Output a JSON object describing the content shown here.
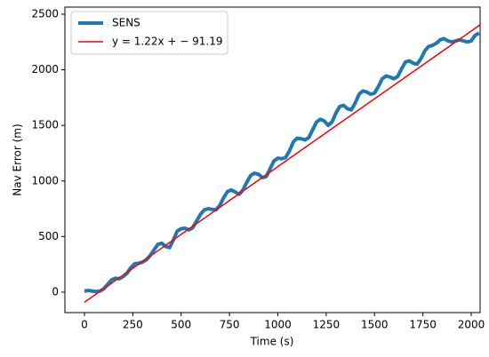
{
  "chart_data": {
    "type": "line",
    "xlabel": "Time (s)",
    "ylabel": "Nav Error (m)",
    "xlim": [
      -101,
      2046
    ],
    "ylim": [
      -184,
      2564
    ],
    "xticks": [
      0,
      250,
      500,
      750,
      1000,
      1250,
      1500,
      1750,
      2000
    ],
    "yticks": [
      0,
      500,
      1000,
      1500,
      2000,
      2500
    ],
    "legend": "upper left",
    "series": [
      {
        "name": "SENS",
        "color": "#1f77b4",
        "width": 4,
        "x": [
          0,
          20,
          40,
          60,
          80,
          100,
          120,
          140,
          160,
          180,
          200,
          220,
          240,
          260,
          280,
          300,
          320,
          340,
          360,
          380,
          400,
          420,
          440,
          460,
          480,
          500,
          520,
          540,
          560,
          580,
          600,
          620,
          640,
          660,
          680,
          700,
          720,
          740,
          760,
          780,
          800,
          820,
          840,
          860,
          880,
          900,
          920,
          940,
          960,
          980,
          1000,
          1020,
          1040,
          1060,
          1080,
          1100,
          1120,
          1140,
          1160,
          1180,
          1200,
          1220,
          1240,
          1260,
          1280,
          1300,
          1320,
          1340,
          1360,
          1380,
          1400,
          1420,
          1440,
          1460,
          1480,
          1500,
          1520,
          1540,
          1560,
          1580,
          1600,
          1620,
          1640,
          1660,
          1680,
          1700,
          1720,
          1740,
          1760,
          1780,
          1800,
          1820,
          1840,
          1860,
          1880,
          1900,
          1920,
          1940,
          1960,
          1980,
          2000,
          2020,
          2040
        ],
        "values": [
          10,
          15,
          10,
          5,
          10,
          30,
          70,
          110,
          125,
          120,
          140,
          170,
          220,
          255,
          260,
          270,
          290,
          330,
          380,
          430,
          440,
          410,
          400,
          470,
          550,
          570,
          575,
          560,
          580,
          640,
          700,
          740,
          750,
          745,
          740,
          780,
          850,
          905,
          920,
          900,
          880,
          920,
          990,
          1050,
          1070,
          1060,
          1030,
          1040,
          1110,
          1180,
          1205,
          1200,
          1210,
          1270,
          1350,
          1385,
          1380,
          1370,
          1390,
          1460,
          1530,
          1555,
          1540,
          1500,
          1530,
          1610,
          1670,
          1680,
          1650,
          1640,
          1700,
          1780,
          1810,
          1800,
          1780,
          1790,
          1850,
          1920,
          1945,
          1935,
          1920,
          1940,
          2010,
          2070,
          2080,
          2060,
          2050,
          2100,
          2170,
          2210,
          2220,
          2240,
          2270,
          2280,
          2260,
          2250,
          2260,
          2270,
          2260,
          2250,
          2260,
          2310,
          2330
        ]
      },
      {
        "name": "y = 1.22x + − 91.19",
        "color": "#ff0000",
        "width": 1.5,
        "x": [
          0,
          2046
        ],
        "values": [
          -91.19,
          2404.93
        ]
      }
    ]
  }
}
